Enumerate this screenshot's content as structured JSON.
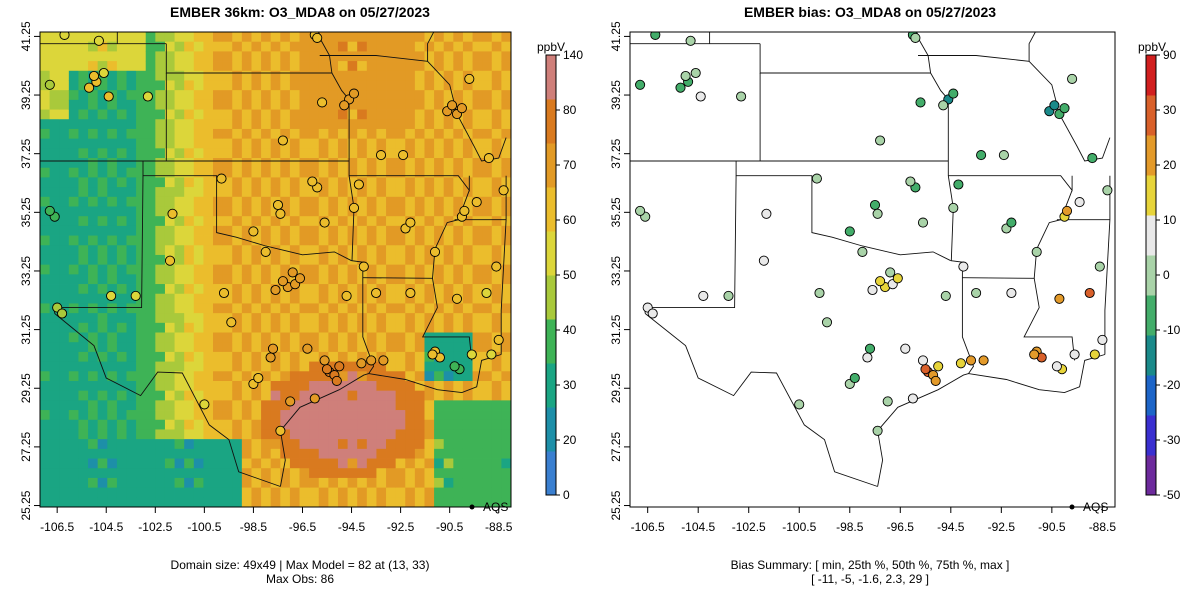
{
  "left": {
    "title": "EMBER 36km: O3_MDA8 on 05/27/2023",
    "unit": "ppbV",
    "footer": [
      "Domain size: 49x49 | Max Model = 82 at (13, 33)",
      "Max Obs: 86"
    ],
    "legend_label": "AQS",
    "colorbar_ticks": [
      "0",
      "20",
      "30",
      "40",
      "50",
      "60",
      "70",
      "80",
      "140"
    ]
  },
  "right": {
    "title": "EMBER bias: O3_MDA8 on 05/27/2023",
    "unit": "ppbV",
    "footer": [
      "Bias Summary: [ min, 25th %, 50th %, 75th %, max ]",
      "[ -11,   -5,   -1.6,   2.3,   29 ]"
    ],
    "legend_label": "AQS",
    "colorbar_ticks": [
      "-50",
      "-30",
      "-20",
      "-10",
      "0",
      "10",
      "20",
      "30",
      "90"
    ]
  },
  "axes": {
    "x_ticks": [
      "-106.5",
      "-104.5",
      "-102.5",
      "-100.5",
      "-98.5",
      "-96.5",
      "-94.5",
      "-92.5",
      "-90.5",
      "-88.5"
    ],
    "y_ticks": [
      "25.25",
      "27.25",
      "29.25",
      "31.25",
      "33.25",
      "35.25",
      "37.25",
      "39.25",
      "41.25"
    ],
    "x_range": [
      -107.2,
      -88.0
    ],
    "y_range": [
      25.2,
      41.4
    ]
  },
  "colors": {
    "model_scale": [
      "#3a7fd0",
      "#1d8fa8",
      "#1aa583",
      "#3eb356",
      "#a9c93b",
      "#dcd63a",
      "#ebbd2c",
      "#e29a25",
      "#d97a1f",
      "#cf7f7a"
    ],
    "bias_scale": [
      "#6d2a9c",
      "#3a2fd0",
      "#1d65c8",
      "#1a8a8a",
      "#43ad6a",
      "#a9d3a8",
      "#e9e9e9",
      "#e7d43a",
      "#e39a2a",
      "#d9602a",
      "#d11f1f"
    ]
  }
}
